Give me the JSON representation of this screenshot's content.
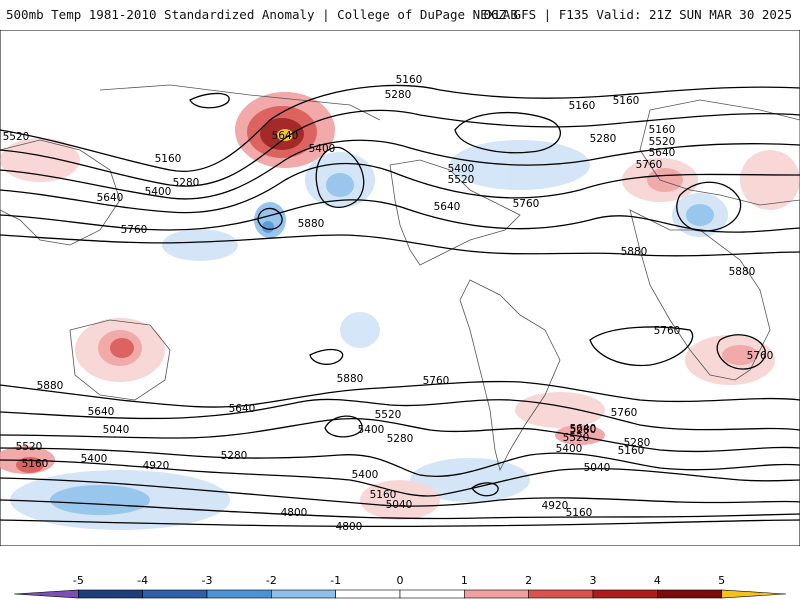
{
  "header": {
    "left_title": "500mb Temp 1981-2010 Standardized Anomaly | College of DuPage NEXLAB",
    "right_title": "06Z GFS | F135 Valid: 21Z SUN MAR 30 2025"
  },
  "map": {
    "field": "500mb Temp Standardized Anomaly",
    "contour_field": "500mb geopotential height",
    "height_labels": [
      "5160",
      "5280",
      "5160",
      "5160",
      "5520",
      "5400",
      "5280",
      "5640",
      "5160",
      "5520",
      "5160",
      "5280",
      "5400",
      "5400",
      "5640",
      "5520",
      "5640",
      "5640",
      "5760",
      "5760",
      "5760",
      "5880",
      "5880",
      "5880",
      "5760",
      "5880",
      "5880",
      "5760",
      "5760",
      "5640",
      "5640",
      "5520",
      "5760",
      "5400",
      "5280",
      "5040",
      "5520",
      "5160",
      "4920",
      "5280",
      "5400",
      "5160",
      "5040",
      "5640",
      "5520",
      "5400",
      "5160",
      "5280",
      "5040",
      "4920",
      "4800",
      "4800",
      "5400",
      "5280",
      "5160"
    ]
  },
  "colorbar": {
    "ticks": [
      "-5",
      "-4",
      "-3",
      "-2",
      "-1",
      "0",
      "1",
      "2",
      "3",
      "4",
      "5"
    ],
    "colors": [
      "#7b4fb5",
      "#1f3f7a",
      "#2e5fa8",
      "#4b93d4",
      "#8fc0ea",
      "#cfe3f6",
      "#f8d3d3",
      "#f0a0a0",
      "#d9534f",
      "#b01c1c",
      "#7a0c0c",
      "#f5c21b"
    ],
    "neutral_color": "#ffffff"
  }
}
